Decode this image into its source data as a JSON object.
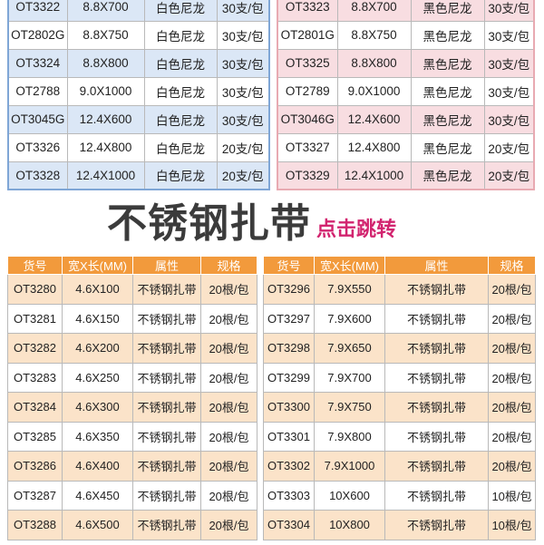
{
  "nylon_white": {
    "rows": [
      [
        "OT3322",
        "8.8X700",
        "白色尼龙",
        "30支/包"
      ],
      [
        "OT2802G",
        "8.8X750",
        "白色尼龙",
        "30支/包"
      ],
      [
        "OT3324",
        "8.8X800",
        "白色尼龙",
        "30支/包"
      ],
      [
        "OT2788",
        "9.0X1000",
        "白色尼龙",
        "30支/包"
      ],
      [
        "OT3045G",
        "12.4X600",
        "白色尼龙",
        "30支/包"
      ],
      [
        "OT3326",
        "12.4X800",
        "白色尼龙",
        "20支/包"
      ],
      [
        "OT3328",
        "12.4X1000",
        "白色尼龙",
        "20支/包"
      ]
    ]
  },
  "nylon_black": {
    "rows": [
      [
        "OT3323",
        "8.8X700",
        "黑色尼龙",
        "30支/包"
      ],
      [
        "OT2801G",
        "8.8X750",
        "黑色尼龙",
        "30支/包"
      ],
      [
        "OT3325",
        "8.8X800",
        "黑色尼龙",
        "30支/包"
      ],
      [
        "OT2789",
        "9.0X1000",
        "黑色尼龙",
        "30支/包"
      ],
      [
        "OT3046G",
        "12.4X600",
        "黑色尼龙",
        "30支/包"
      ],
      [
        "OT3327",
        "12.4X800",
        "黑色尼龙",
        "20支/包"
      ],
      [
        "OT3329",
        "12.4X1000",
        "黑色尼龙",
        "20支/包"
      ]
    ]
  },
  "section": {
    "title": "不锈钢扎带",
    "link": "点击跳转"
  },
  "stainless_left": {
    "headers": [
      "货号",
      "宽X长(MM)",
      "属性",
      "规格"
    ],
    "rows": [
      [
        "OT3280",
        "4.6X100",
        "不锈钢扎带",
        "20根/包"
      ],
      [
        "OT3281",
        "4.6X150",
        "不锈钢扎带",
        "20根/包"
      ],
      [
        "OT3282",
        "4.6X200",
        "不锈钢扎带",
        "20根/包"
      ],
      [
        "OT3283",
        "4.6X250",
        "不锈钢扎带",
        "20根/包"
      ],
      [
        "OT3284",
        "4.6X300",
        "不锈钢扎带",
        "20根/包"
      ],
      [
        "OT3285",
        "4.6X350",
        "不锈钢扎带",
        "20根/包"
      ],
      [
        "OT3286",
        "4.6X400",
        "不锈钢扎带",
        "20根/包"
      ],
      [
        "OT3287",
        "4.6X450",
        "不锈钢扎带",
        "20根/包"
      ],
      [
        "OT3288",
        "4.6X500",
        "不锈钢扎带",
        "20根/包"
      ]
    ]
  },
  "stainless_right": {
    "headers": [
      "货号",
      "宽X长(MM)",
      "属性",
      "规格"
    ],
    "rows": [
      [
        "OT3296",
        "7.9X550",
        "不锈钢扎带",
        "20根/包"
      ],
      [
        "OT3297",
        "7.9X600",
        "不锈钢扎带",
        "20根/包"
      ],
      [
        "OT3298",
        "7.9X650",
        "不锈钢扎带",
        "20根/包"
      ],
      [
        "OT3299",
        "7.9X700",
        "不锈钢扎带",
        "20根/包"
      ],
      [
        "OT3300",
        "7.9X750",
        "不锈钢扎带",
        "20根/包"
      ],
      [
        "OT3301",
        "7.9X800",
        "不锈钢扎带",
        "20根/包"
      ],
      [
        "OT3302",
        "7.9X1000",
        "不锈钢扎带",
        "20根/包"
      ],
      [
        "OT3303",
        "10X600",
        "不锈钢扎带",
        "10根/包"
      ],
      [
        "OT3304",
        "10X800",
        "不锈钢扎带",
        "10根/包"
      ]
    ]
  },
  "colors": {
    "white_table_border": "#7fa6d6",
    "white_table_shade": "#dbe7f6",
    "black_table_border": "#e8aab2",
    "black_table_shade": "#f8dde1",
    "header_orange": "#f29a3c",
    "row_shade_orange": "#fbe3c9",
    "link_pink": "#d2246f"
  }
}
